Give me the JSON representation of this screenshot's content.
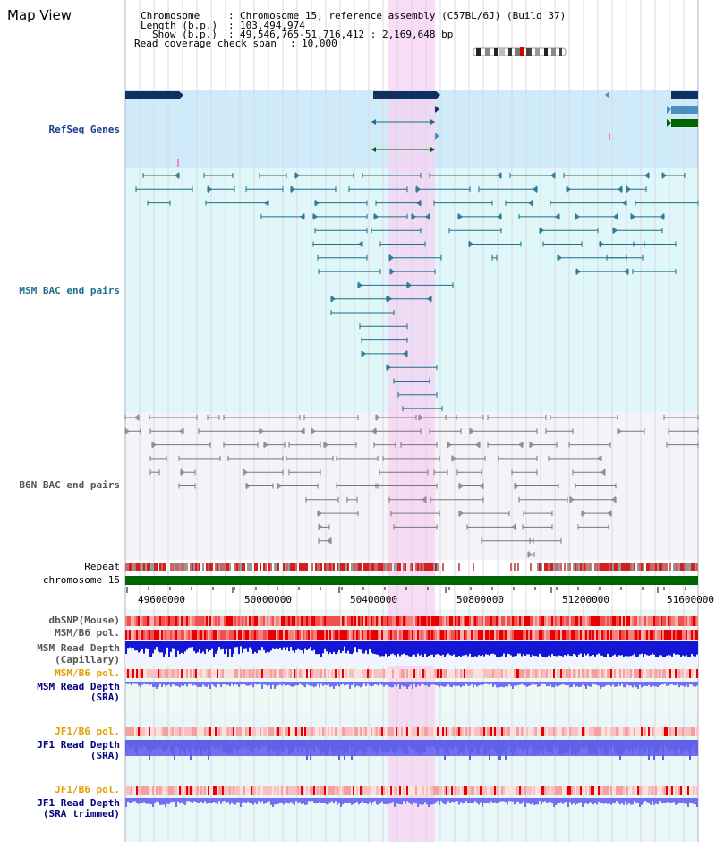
{
  "view": {
    "title": "Map View",
    "info": {
      "chromosome_label": "Chromosome",
      "chromosome_value": "Chromosome 15, reference assembly (C57BL/6J) (Build 37)",
      "length_label": "Length (b.p.)",
      "length_value": "103,494,974",
      "show_label": "Show (b.p.)",
      "show_value": "49,546,765-51,716,412 : 2,169,648 bp",
      "coverage_label": "Read coverage check span",
      "coverage_value": "10,000"
    }
  },
  "tracks": {
    "refseq": "RefSeq Genes",
    "msm_bac": "MSM BAC end pairs",
    "b6n_bac": "B6N BAC end pairs",
    "repeat": "Repeat",
    "chromosome": "chromosome 15",
    "dbsnp": "dbSNP(Mouse)",
    "msm_b6_pol_1": "MSM/B6 pol.",
    "msm_depth_cap_1": "MSM Read Depth",
    "msm_depth_cap_2": "(Capillary)",
    "msm_b6_pol_2": "MSM/B6 pol.",
    "msm_depth_sra_1": "MSM Read Depth",
    "msm_depth_sra_2": "(SRA)",
    "jf1_pol_1": "JF1/B6 pol.",
    "jf1_depth_1": "JF1 Read Depth",
    "jf1_depth_2": "(SRA)",
    "jf1_pol_2": "JF1/B6 pol.",
    "jf1_depth_trim_1": "JF1 Read Depth",
    "jf1_depth_trim_2": "(SRA trimmed)"
  },
  "axis": {
    "ticks": [
      "49600000",
      "50000000",
      "50400000",
      "50800000",
      "51200000",
      "51600000"
    ]
  },
  "colors": {
    "highlight": "#f7d0f2",
    "refseq_bg": "#cfeaf8",
    "msm_bg": "#dff7f9",
    "b6n_bg": "#f4f4f8",
    "gene_dark": "#10305f",
    "gene_light": "#4a8fc0",
    "gene_green": "#006400",
    "msm_line": "#1e6e8c",
    "b6n_line": "#777777",
    "chrom_green": "#006400",
    "snp_red": "#f04040",
    "depth_blue": "#1515d8",
    "depth_light": "#7070f0"
  }
}
